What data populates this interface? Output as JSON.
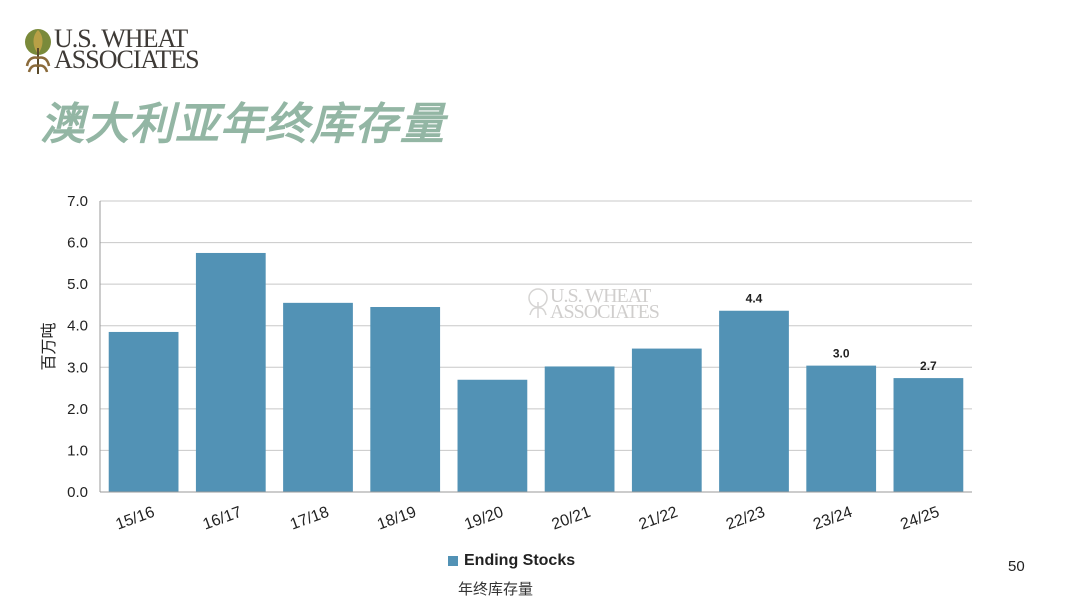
{
  "logo": {
    "line1": "U.S. WHEAT",
    "line2": "ASSOCIATES"
  },
  "page_title": "澳大利亚年终库存量",
  "slide_number": "50",
  "chart_caption": "年终库存量",
  "colors": {
    "bar": "#5292b5",
    "title": "#93b6a4",
    "grid": "#c8c8c8"
  },
  "chart_data": {
    "type": "bar",
    "categories": [
      "15/16",
      "16/17",
      "17/18",
      "18/19",
      "19/20",
      "20/21",
      "21/22",
      "22/23",
      "23/24",
      "24/25"
    ],
    "series": [
      {
        "name": "Ending Stocks",
        "values": [
          3.85,
          5.75,
          4.55,
          4.45,
          2.7,
          3.02,
          3.45,
          4.36,
          3.04,
          2.74
        ]
      }
    ],
    "data_labels": [
      "",
      "",
      "",
      "",
      "",
      "",
      "",
      "4.4",
      "3.0",
      "2.7"
    ],
    "ylabel": "百万吨",
    "ylim": [
      0,
      7
    ],
    "yticks": [
      "0.0",
      "1.0",
      "2.0",
      "3.0",
      "4.0",
      "5.0",
      "6.0",
      "7.0"
    ],
    "grid": true,
    "legend_position": "bottom"
  }
}
